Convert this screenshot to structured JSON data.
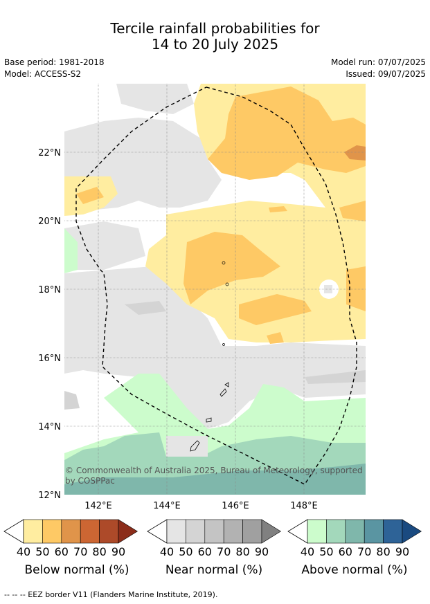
{
  "title_line1": "Tercile rainfall probabilities for",
  "title_line2": "14 to 20 July 2025",
  "base_period": "Base period: 1981-2018",
  "model": "Model: ACCESS-S2",
  "model_run": "Model run: 07/07/2025",
  "issued": "Issued: 09/07/2025",
  "copyright": "© Commonwealth of Australia 2025, Bureau of Meteorology, supported by COSPPac",
  "lat_labels": [
    "22°N",
    "20°N",
    "18°N",
    "16°N",
    "14°N",
    "12°N"
  ],
  "lon_labels": [
    "142°E",
    "144°E",
    "146°E",
    "148°E"
  ],
  "colorbars": [
    {
      "title": "Below normal (%)",
      "ticks": [
        "40",
        "50",
        "60",
        "70",
        "80",
        "90"
      ],
      "colors": [
        "#ffeda0",
        "#fec965",
        "#e0944a",
        "#cc6633",
        "#ad4a29",
        "#8c2d1a"
      ]
    },
    {
      "title": "Near normal (%)",
      "ticks": [
        "40",
        "50",
        "60",
        "70",
        "80",
        "90"
      ],
      "colors": [
        "#e5e5e5",
        "#d4d4d4",
        "#c4c4c4",
        "#b2b2b2",
        "#a0a0a0",
        "#808080"
      ]
    },
    {
      "title": "Above normal (%)",
      "ticks": [
        "40",
        "50",
        "60",
        "70",
        "80",
        "90"
      ],
      "colors": [
        "#ccfccc",
        "#a3d8bb",
        "#7fb7ab",
        "#5a95a2",
        "#2e6397",
        "#1a4a80"
      ]
    }
  ],
  "footer": "--  --  -- EEZ border V11 (Flanders Marine Institute, 2019)."
}
